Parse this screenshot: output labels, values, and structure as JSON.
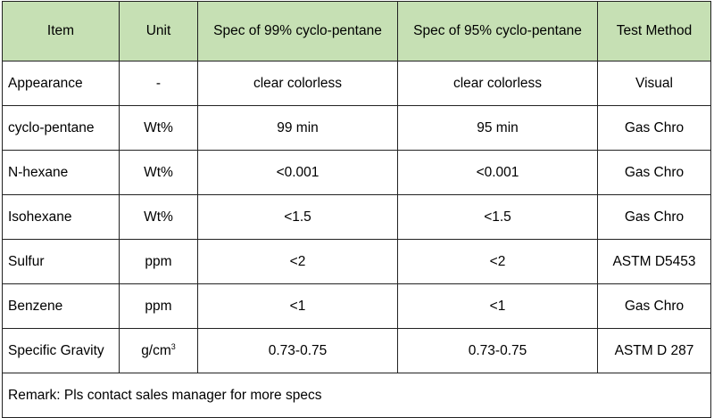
{
  "table": {
    "headers": [
      "Item",
      "Unit",
      "Spec of 99% cyclo-pentane",
      "Spec of 95% cyclo-pentane",
      "Test Method"
    ],
    "rows": [
      {
        "item": "Appearance",
        "unit": "-",
        "spec99": "clear colorless",
        "spec95": "clear colorless",
        "method": "Visual"
      },
      {
        "item": "cyclo-pentane",
        "unit": "Wt%",
        "spec99": "99 min",
        "spec95": "95 min",
        "method": "Gas Chro"
      },
      {
        "item": "N-hexane",
        "unit": "Wt%",
        "spec99": "<0.001",
        "spec95": "<0.001",
        "method": "Gas Chro"
      },
      {
        "item": "Isohexane",
        "unit": "Wt%",
        "spec99": "<1.5",
        "spec95": "<1.5",
        "method": "Gas Chro"
      },
      {
        "item": "Sulfur",
        "unit": "ppm",
        "spec99": "<2",
        "spec95": "<2",
        "method": "ASTM D5453"
      },
      {
        "item": "Benzene",
        "unit": "ppm",
        "spec99": "<1",
        "spec95": "<1",
        "method": "Gas Chro"
      },
      {
        "item": "Specific Gravity",
        "unit": "g/cm",
        "unit_sup": "3",
        "spec99": "0.73-0.75",
        "spec95": "0.73-0.75",
        "method": "ASTM D 287"
      }
    ],
    "remark": "Remark: Pls contact sales manager for more specs",
    "header_color": "#c6e0b4"
  }
}
